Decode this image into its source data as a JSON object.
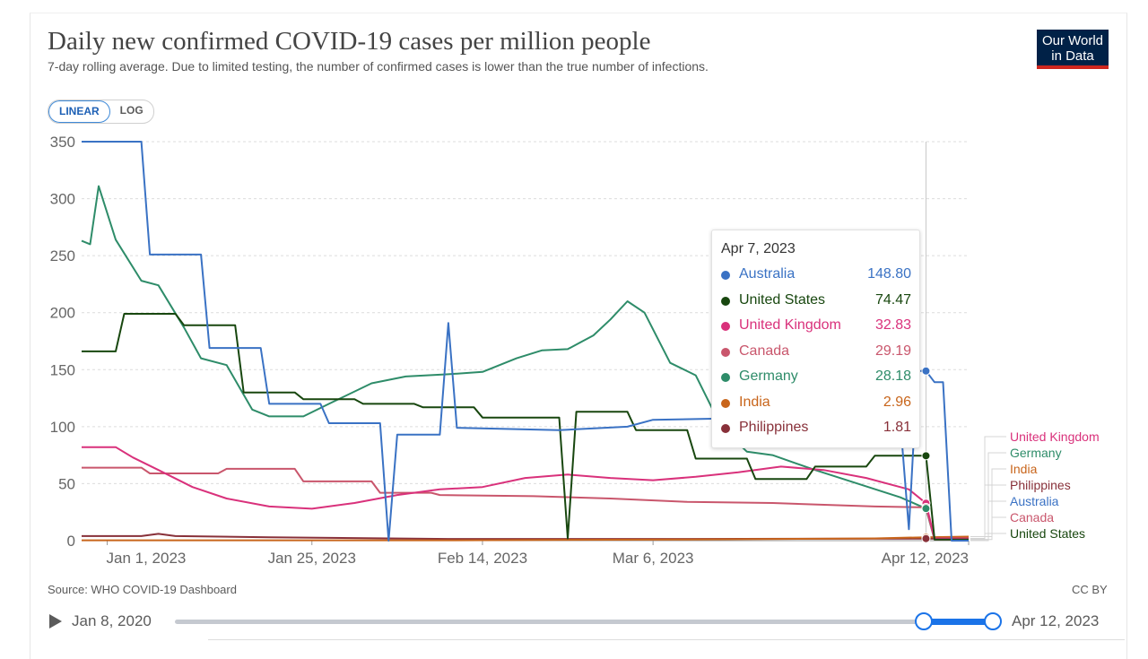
{
  "header": {
    "title": "Daily new confirmed COVID-19 cases per million people",
    "subtitle": "7-day rolling average. Due to limited testing, the number of confirmed cases is lower than the true number of infections.",
    "logo_line1": "Our World",
    "logo_line2": "in Data",
    "logo_color": "#002147",
    "logo_accent": "#ce261e"
  },
  "scale_toggle": {
    "linear": "LINEAR",
    "log": "LOG",
    "selected": "LINEAR"
  },
  "footer": {
    "source": "Source: WHO COVID-19 Dashboard",
    "license": "CC BY"
  },
  "timeline": {
    "start_label": "Jan 8, 2020",
    "end_label": "Apr 12, 2023",
    "accent": "#1a73e8"
  },
  "tooltip": {
    "date": "Apr 7, 2023",
    "rows": [
      {
        "name": "Australia",
        "value": "148.80",
        "color": "#3a72c4"
      },
      {
        "name": "United States",
        "value": "74.47",
        "color": "#18470f"
      },
      {
        "name": "United Kingdom",
        "value": "32.83",
        "color": "#d9317b"
      },
      {
        "name": "Canada",
        "value": "29.19",
        "color": "#c9566c"
      },
      {
        "name": "Germany",
        "value": "28.18",
        "color": "#2e8c69"
      },
      {
        "name": "India",
        "value": "2.96",
        "color": "#c8651b"
      },
      {
        "name": "Philippines",
        "value": "1.81",
        "color": "#883039"
      }
    ]
  },
  "chart_data": {
    "type": "line",
    "ylim": [
      0,
      350
    ],
    "yticks": [
      0,
      50,
      100,
      150,
      200,
      250,
      300,
      350
    ],
    "xlim": [
      "2022-12-29",
      "2023-04-12"
    ],
    "xticks": [
      {
        "date": "2023-01-01",
        "label": "Jan 1, 2023"
      },
      {
        "date": "2023-01-25",
        "label": "Jan 25, 2023"
      },
      {
        "date": "2023-02-14",
        "label": "Feb 14, 2023"
      },
      {
        "date": "2023-03-06",
        "label": "Mar 6, 2023"
      },
      {
        "date": "2023-04-12",
        "label": "Apr 12, 2023"
      }
    ],
    "grid": true,
    "hover_date": "2023-04-07",
    "legend": [
      {
        "name": "United Kingdom",
        "color": "#d9317b"
      },
      {
        "name": "Germany",
        "color": "#2e8c69"
      },
      {
        "name": "India",
        "color": "#c8651b"
      },
      {
        "name": "Philippines",
        "color": "#883039"
      },
      {
        "name": "Australia",
        "color": "#3a72c4"
      },
      {
        "name": "Canada",
        "color": "#c9566c"
      },
      {
        "name": "United States",
        "color": "#18470f"
      }
    ],
    "series": [
      {
        "name": "Australia",
        "color": "#3a72c4",
        "points": [
          [
            "2022-12-29",
            350
          ],
          [
            "2023-01-05",
            350
          ],
          [
            "2023-01-06",
            251
          ],
          [
            "2023-01-12",
            251
          ],
          [
            "2023-01-13",
            169
          ],
          [
            "2023-01-19",
            169
          ],
          [
            "2023-01-20",
            120
          ],
          [
            "2023-01-26",
            120
          ],
          [
            "2023-01-27",
            103
          ],
          [
            "2023-02-02",
            103
          ],
          [
            "2023-02-03",
            0
          ],
          [
            "2023-02-04",
            93
          ],
          [
            "2023-02-09",
            93
          ],
          [
            "2023-02-10",
            191
          ],
          [
            "2023-02-11",
            99
          ],
          [
            "2023-02-23",
            97
          ],
          [
            "2023-03-03",
            100
          ],
          [
            "2023-03-06",
            106
          ],
          [
            "2023-03-13",
            107
          ],
          [
            "2023-03-20",
            108
          ],
          [
            "2023-04-04",
            104
          ],
          [
            "2023-04-05",
            10
          ],
          [
            "2023-04-06",
            148.8
          ],
          [
            "2023-04-07",
            148.8
          ],
          [
            "2023-04-08",
            139
          ],
          [
            "2023-04-09",
            139
          ],
          [
            "2023-04-10",
            0
          ],
          [
            "2023-04-12",
            0
          ]
        ]
      },
      {
        "name": "United States",
        "color": "#18470f",
        "points": [
          [
            "2022-12-29",
            166
          ],
          [
            "2023-01-02",
            166
          ],
          [
            "2023-01-03",
            199
          ],
          [
            "2023-01-09",
            199
          ],
          [
            "2023-01-10",
            189
          ],
          [
            "2023-01-16",
            189
          ],
          [
            "2023-01-17",
            130
          ],
          [
            "2023-01-23",
            130
          ],
          [
            "2023-01-24",
            124
          ],
          [
            "2023-01-30",
            124
          ],
          [
            "2023-01-31",
            120
          ],
          [
            "2023-02-06",
            120
          ],
          [
            "2023-02-07",
            117
          ],
          [
            "2023-02-13",
            117
          ],
          [
            "2023-02-14",
            108
          ],
          [
            "2023-02-23",
            108
          ],
          [
            "2023-02-24",
            2
          ],
          [
            "2023-02-25",
            113
          ],
          [
            "2023-03-03",
            113
          ],
          [
            "2023-03-04",
            97
          ],
          [
            "2023-03-10",
            97
          ],
          [
            "2023-03-11",
            72
          ],
          [
            "2023-03-17",
            72
          ],
          [
            "2023-03-18",
            54
          ],
          [
            "2023-03-24",
            54
          ],
          [
            "2023-03-25",
            65
          ],
          [
            "2023-03-31",
            65
          ],
          [
            "2023-04-01",
            74.47
          ],
          [
            "2023-04-07",
            74.47
          ],
          [
            "2023-04-08",
            1
          ],
          [
            "2023-04-12",
            1
          ]
        ]
      },
      {
        "name": "United Kingdom",
        "color": "#d9317b",
        "points": [
          [
            "2022-12-29",
            82
          ],
          [
            "2023-01-02",
            82
          ],
          [
            "2023-01-04",
            73
          ],
          [
            "2023-01-07",
            62
          ],
          [
            "2023-01-11",
            47
          ],
          [
            "2023-01-15",
            37
          ],
          [
            "2023-01-20",
            30
          ],
          [
            "2023-01-25",
            28
          ],
          [
            "2023-01-30",
            33
          ],
          [
            "2023-02-04",
            40
          ],
          [
            "2023-02-09",
            45
          ],
          [
            "2023-02-14",
            47
          ],
          [
            "2023-02-19",
            55
          ],
          [
            "2023-02-24",
            58
          ],
          [
            "2023-03-01",
            55
          ],
          [
            "2023-03-06",
            53
          ],
          [
            "2023-03-11",
            56
          ],
          [
            "2023-03-16",
            60
          ],
          [
            "2023-03-21",
            65
          ],
          [
            "2023-03-26",
            62
          ],
          [
            "2023-03-31",
            55
          ],
          [
            "2023-04-05",
            45
          ],
          [
            "2023-04-07",
            32.83
          ],
          [
            "2023-04-08",
            2
          ],
          [
            "2023-04-12",
            2
          ]
        ]
      },
      {
        "name": "Canada",
        "color": "#c9566c",
        "points": [
          [
            "2022-12-29",
            64
          ],
          [
            "2023-01-05",
            64
          ],
          [
            "2023-01-06",
            59
          ],
          [
            "2023-01-14",
            59
          ],
          [
            "2023-01-15",
            63
          ],
          [
            "2023-01-23",
            63
          ],
          [
            "2023-01-24",
            52
          ],
          [
            "2023-02-01",
            52
          ],
          [
            "2023-02-02",
            42
          ],
          [
            "2023-02-08",
            42
          ],
          [
            "2023-02-09",
            40
          ],
          [
            "2023-02-20",
            39
          ],
          [
            "2023-03-01",
            37
          ],
          [
            "2023-03-10",
            34
          ],
          [
            "2023-03-20",
            33
          ],
          [
            "2023-04-01",
            30
          ],
          [
            "2023-04-07",
            29.19
          ],
          [
            "2023-04-08",
            1
          ],
          [
            "2023-04-12",
            1
          ]
        ]
      },
      {
        "name": "Germany",
        "color": "#2e8c69",
        "points": [
          [
            "2022-12-29",
            263
          ],
          [
            "2022-12-30",
            260
          ],
          [
            "2022-12-31",
            311
          ],
          [
            "2023-01-02",
            264
          ],
          [
            "2023-01-05",
            228
          ],
          [
            "2023-01-07",
            224
          ],
          [
            "2023-01-10",
            187
          ],
          [
            "2023-01-12",
            160
          ],
          [
            "2023-01-15",
            154
          ],
          [
            "2023-01-18",
            115
          ],
          [
            "2023-01-20",
            109
          ],
          [
            "2023-01-24",
            109
          ],
          [
            "2023-01-27",
            120
          ],
          [
            "2023-02-01",
            138
          ],
          [
            "2023-02-05",
            144
          ],
          [
            "2023-02-10",
            146
          ],
          [
            "2023-02-14",
            148
          ],
          [
            "2023-02-18",
            160
          ],
          [
            "2023-02-21",
            167
          ],
          [
            "2023-02-24",
            168
          ],
          [
            "2023-02-27",
            180
          ],
          [
            "2023-03-01",
            194
          ],
          [
            "2023-03-03",
            210
          ],
          [
            "2023-03-05",
            200
          ],
          [
            "2023-03-08",
            156
          ],
          [
            "2023-03-11",
            145
          ],
          [
            "2023-03-14",
            100
          ],
          [
            "2023-03-17",
            78
          ],
          [
            "2023-03-20",
            75
          ],
          [
            "2023-03-25",
            62
          ],
          [
            "2023-03-30",
            50
          ],
          [
            "2023-04-04",
            38
          ],
          [
            "2023-04-07",
            28.18
          ],
          [
            "2023-04-08",
            1
          ],
          [
            "2023-04-12",
            1
          ]
        ]
      },
      {
        "name": "India",
        "color": "#c8651b",
        "points": [
          [
            "2022-12-29",
            0.3
          ],
          [
            "2023-02-10",
            0.3
          ],
          [
            "2023-03-10",
            1
          ],
          [
            "2023-04-01",
            2
          ],
          [
            "2023-04-07",
            2.96
          ],
          [
            "2023-04-12",
            3.5
          ]
        ]
      },
      {
        "name": "Philippines",
        "color": "#883039",
        "points": [
          [
            "2022-12-29",
            4
          ],
          [
            "2023-01-05",
            4
          ],
          [
            "2023-01-07",
            6
          ],
          [
            "2023-01-09",
            4
          ],
          [
            "2023-01-20",
            3
          ],
          [
            "2023-02-10",
            1.5
          ],
          [
            "2023-03-10",
            1.5
          ],
          [
            "2023-04-07",
            1.81
          ],
          [
            "2023-04-12",
            1.5
          ]
        ]
      }
    ]
  }
}
